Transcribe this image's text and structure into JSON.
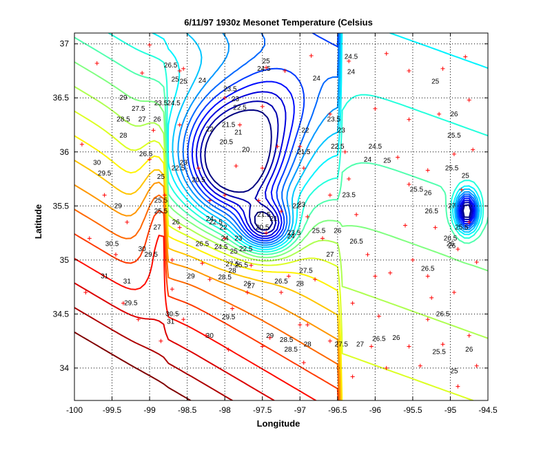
{
  "chart_data": {
    "type": "contour",
    "title": "6/11/97 1930z Mesonet Temperature (Celsius",
    "xlabel": "Longitude",
    "ylabel": "Latitude",
    "xlim": [
      -100,
      -94.5
    ],
    "ylim": [
      33.7,
      37.1
    ],
    "xticks": [
      "-100",
      "-99.5",
      "-99",
      "-98.5",
      "-98",
      "-97.5",
      "-97",
      "-96.5",
      "-96",
      "-95.5",
      "-95",
      "-94.5"
    ],
    "yticks": [
      "34",
      "34.5",
      "35",
      "35.5",
      "36",
      "36.5",
      "37"
    ],
    "grid": true,
    "colormap": "jet",
    "level_range": [
      20,
      31
    ],
    "level_step": 0.5,
    "colors": {
      "station_marker": "#ff0000",
      "grid": "#000000"
    },
    "field_centers": [
      {
        "lon": -97.9,
        "lat": 35.9,
        "value": 20.0
      },
      {
        "lon": -97.45,
        "lat": 35.3,
        "value": 20.8
      },
      {
        "lon": -94.78,
        "lat": 35.45,
        "value": 21.0
      }
    ],
    "contour_labels": [
      {
        "lon": -97.45,
        "lat": 36.84,
        "text": "25"
      },
      {
        "lon": -97.48,
        "lat": 36.77,
        "text": "24.5"
      },
      {
        "lon": -96.32,
        "lat": 36.88,
        "text": "24.5"
      },
      {
        "lon": -96.32,
        "lat": 36.74,
        "text": "24"
      },
      {
        "lon": -98.3,
        "lat": 36.66,
        "text": "24"
      },
      {
        "lon": -97.93,
        "lat": 36.58,
        "text": "23.5"
      },
      {
        "lon": -97.86,
        "lat": 36.49,
        "text": "23"
      },
      {
        "lon": -97.8,
        "lat": 36.41,
        "text": "22.5"
      },
      {
        "lon": -98.2,
        "lat": 36.21,
        "text": "22"
      },
      {
        "lon": -97.95,
        "lat": 36.25,
        "text": "21.5"
      },
      {
        "lon": -97.82,
        "lat": 36.18,
        "text": "21"
      },
      {
        "lon": -97.98,
        "lat": 36.09,
        "text": "20.5"
      },
      {
        "lon": -97.72,
        "lat": 36.02,
        "text": "20"
      },
      {
        "lon": -98.35,
        "lat": 35.74,
        "text": "20.5"
      },
      {
        "lon": -96.93,
        "lat": 36.2,
        "text": "22"
      },
      {
        "lon": -96.55,
        "lat": 36.3,
        "text": "23.5"
      },
      {
        "lon": -96.45,
        "lat": 36.2,
        "text": "23"
      },
      {
        "lon": -96.5,
        "lat": 36.05,
        "text": "22.5"
      },
      {
        "lon": -96.95,
        "lat": 36.0,
        "text": "21.5"
      },
      {
        "lon": -96.78,
        "lat": 36.68,
        "text": "24"
      },
      {
        "lon": -96.1,
        "lat": 35.93,
        "text": "24"
      },
      {
        "lon": -96.0,
        "lat": 36.05,
        "text": "24.5"
      },
      {
        "lon": -95.84,
        "lat": 35.92,
        "text": "25"
      },
      {
        "lon": -96.35,
        "lat": 35.6,
        "text": "23.5"
      },
      {
        "lon": -96.98,
        "lat": 35.51,
        "text": "23"
      },
      {
        "lon": -97.05,
        "lat": 35.5,
        "text": "22"
      },
      {
        "lon": -97.48,
        "lat": 35.42,
        "text": "21.5"
      },
      {
        "lon": -97.35,
        "lat": 35.38,
        "text": "21"
      },
      {
        "lon": -97.5,
        "lat": 35.3,
        "text": "20.5"
      },
      {
        "lon": -97.12,
        "lat": 35.22,
        "text": "24"
      },
      {
        "lon": -97.08,
        "lat": 35.25,
        "text": "23.5"
      },
      {
        "lon": -96.75,
        "lat": 35.27,
        "text": "25.5"
      },
      {
        "lon": -96.5,
        "lat": 35.27,
        "text": "26"
      },
      {
        "lon": -96.25,
        "lat": 35.17,
        "text": "26.5"
      },
      {
        "lon": -96.6,
        "lat": 35.05,
        "text": "27"
      },
      {
        "lon": -96.92,
        "lat": 34.9,
        "text": "27.5"
      },
      {
        "lon": -97.0,
        "lat": 34.78,
        "text": "28"
      },
      {
        "lon": -97.25,
        "lat": 34.8,
        "text": "26.5"
      },
      {
        "lon": -97.7,
        "lat": 34.78,
        "text": "26"
      },
      {
        "lon": -97.65,
        "lat": 34.76,
        "text": "27"
      },
      {
        "lon": -97.72,
        "lat": 35.1,
        "text": "22.5"
      },
      {
        "lon": -97.82,
        "lat": 35.2,
        "text": "23"
      },
      {
        "lon": -98.0,
        "lat": 35.2,
        "text": "24"
      },
      {
        "lon": -98.02,
        "lat": 35.3,
        "text": "22"
      },
      {
        "lon": -98.12,
        "lat": 35.35,
        "text": "22.5"
      },
      {
        "lon": -98.2,
        "lat": 35.38,
        "text": "24"
      },
      {
        "lon": -98.05,
        "lat": 35.12,
        "text": "24.5"
      },
      {
        "lon": -97.88,
        "lat": 35.08,
        "text": "25"
      },
      {
        "lon": -97.78,
        "lat": 34.95,
        "text": "25.5"
      },
      {
        "lon": -98.3,
        "lat": 35.15,
        "text": "26.5"
      },
      {
        "lon": -97.9,
        "lat": 34.96,
        "text": "27.5"
      },
      {
        "lon": -97.9,
        "lat": 34.9,
        "text": "28"
      },
      {
        "lon": -98.0,
        "lat": 34.84,
        "text": "28.5"
      },
      {
        "lon": -98.45,
        "lat": 34.85,
        "text": "29"
      },
      {
        "lon": -98.7,
        "lat": 34.5,
        "text": "30.5"
      },
      {
        "lon": -98.72,
        "lat": 34.43,
        "text": "31"
      },
      {
        "lon": -98.2,
        "lat": 34.3,
        "text": "30"
      },
      {
        "lon": -97.95,
        "lat": 34.47,
        "text": "29.5"
      },
      {
        "lon": -97.4,
        "lat": 34.3,
        "text": "29"
      },
      {
        "lon": -97.18,
        "lat": 34.26,
        "text": "28.5"
      },
      {
        "lon": -97.12,
        "lat": 34.17,
        "text": "28.5"
      },
      {
        "lon": -96.9,
        "lat": 34.22,
        "text": "28"
      },
      {
        "lon": -96.45,
        "lat": 34.22,
        "text": "27.5"
      },
      {
        "lon": -96.2,
        "lat": 34.22,
        "text": "27"
      },
      {
        "lon": -95.95,
        "lat": 34.27,
        "text": "26.5"
      },
      {
        "lon": -95.72,
        "lat": 34.28,
        "text": "26"
      },
      {
        "lon": -95.15,
        "lat": 34.15,
        "text": "25.5"
      },
      {
        "lon": -94.95,
        "lat": 33.97,
        "text": "25"
      },
      {
        "lon": -94.75,
        "lat": 34.17,
        "text": "26"
      },
      {
        "lon": -95.1,
        "lat": 34.5,
        "text": "26.5"
      },
      {
        "lon": -95.3,
        "lat": 34.92,
        "text": "26.5"
      },
      {
        "lon": -95.25,
        "lat": 35.45,
        "text": "26.5"
      },
      {
        "lon": -94.98,
        "lat": 35.5,
        "text": "27"
      },
      {
        "lon": -95.0,
        "lat": 35.15,
        "text": "26"
      },
      {
        "lon": -95.0,
        "lat": 35.2,
        "text": "26.5"
      },
      {
        "lon": -94.98,
        "lat": 35.13,
        "text": "26"
      },
      {
        "lon": -95.45,
        "lat": 35.65,
        "text": "25.5"
      },
      {
        "lon": -95.3,
        "lat": 35.62,
        "text": "26"
      },
      {
        "lon": -95.2,
        "lat": 36.65,
        "text": "25"
      },
      {
        "lon": -94.95,
        "lat": 36.35,
        "text": "26"
      },
      {
        "lon": -94.95,
        "lat": 36.15,
        "text": "25.5"
      },
      {
        "lon": -94.98,
        "lat": 35.85,
        "text": "25.5"
      },
      {
        "lon": -94.8,
        "lat": 35.78,
        "text": "25"
      },
      {
        "lon": -94.85,
        "lat": 35.3,
        "text": "25.5"
      },
      {
        "lon": -99.35,
        "lat": 36.5,
        "text": "29"
      },
      {
        "lon": -99.15,
        "lat": 36.4,
        "text": "27.5"
      },
      {
        "lon": -99.35,
        "lat": 36.3,
        "text": "28.5"
      },
      {
        "lon": -99.1,
        "lat": 36.3,
        "text": "27"
      },
      {
        "lon": -99.35,
        "lat": 36.15,
        "text": "28"
      },
      {
        "lon": -98.9,
        "lat": 36.3,
        "text": "26"
      },
      {
        "lon": -98.85,
        "lat": 36.45,
        "text": "23.5"
      },
      {
        "lon": -98.68,
        "lat": 36.45,
        "text": "24.5"
      },
      {
        "lon": -98.66,
        "lat": 36.67,
        "text": "25"
      },
      {
        "lon": -98.55,
        "lat": 36.65,
        "text": "25"
      },
      {
        "lon": -98.72,
        "lat": 36.8,
        "text": "26.5"
      },
      {
        "lon": -99.05,
        "lat": 35.98,
        "text": "26.5"
      },
      {
        "lon": -99.7,
        "lat": 35.9,
        "text": "30"
      },
      {
        "lon": -99.6,
        "lat": 35.8,
        "text": "29.5"
      },
      {
        "lon": -99.42,
        "lat": 35.5,
        "text": "29"
      },
      {
        "lon": -99.5,
        "lat": 35.15,
        "text": "30.5"
      },
      {
        "lon": -99.1,
        "lat": 35.1,
        "text": "30"
      },
      {
        "lon": -98.98,
        "lat": 35.05,
        "text": "29.5"
      },
      {
        "lon": -99.6,
        "lat": 34.85,
        "text": "31"
      },
      {
        "lon": -99.3,
        "lat": 34.8,
        "text": "31"
      },
      {
        "lon": -99.25,
        "lat": 34.6,
        "text": "29.5"
      },
      {
        "lon": -98.85,
        "lat": 35.77,
        "text": "25"
      },
      {
        "lon": -98.85,
        "lat": 35.55,
        "text": "25.5"
      },
      {
        "lon": -98.85,
        "lat": 35.45,
        "text": "25.5"
      },
      {
        "lon": -98.9,
        "lat": 35.3,
        "text": "27"
      },
      {
        "lon": -98.65,
        "lat": 35.35,
        "text": "26"
      },
      {
        "lon": -98.62,
        "lat": 35.85,
        "text": "22.5"
      },
      {
        "lon": -98.55,
        "lat": 35.9,
        "text": "23"
      }
    ],
    "stations": [
      [
        -99.0,
        36.99
      ],
      [
        -98.55,
        36.77
      ],
      [
        -97.45,
        36.78
      ],
      [
        -97.2,
        36.75
      ],
      [
        -96.85,
        36.89
      ],
      [
        -96.35,
        36.84
      ],
      [
        -95.85,
        36.91
      ],
      [
        -95.55,
        36.75
      ],
      [
        -95.1,
        36.77
      ],
      [
        -94.8,
        36.88
      ],
      [
        -99.7,
        36.82
      ],
      [
        -99.1,
        36.73
      ],
      [
        -98.6,
        36.75
      ],
      [
        -98.0,
        36.5
      ],
      [
        -97.5,
        36.42
      ],
      [
        -96.6,
        36.35
      ],
      [
        -96.0,
        36.4
      ],
      [
        -95.55,
        36.3
      ],
      [
        -95.15,
        36.35
      ],
      [
        -94.75,
        36.48
      ],
      [
        -98.95,
        36.2
      ],
      [
        -98.6,
        36.25
      ],
      [
        -97.8,
        36.25
      ],
      [
        -97.3,
        36.05
      ],
      [
        -97.0,
        36.05
      ],
      [
        -96.4,
        36.0
      ],
      [
        -95.7,
        35.95
      ],
      [
        -95.3,
        35.83
      ],
      [
        -94.95,
        35.98
      ],
      [
        -94.7,
        36.02
      ],
      [
        -99.9,
        36.07
      ],
      [
        -99.0,
        35.93
      ],
      [
        -98.35,
        35.85
      ],
      [
        -97.85,
        35.87
      ],
      [
        -97.5,
        35.85
      ],
      [
        -96.95,
        35.85
      ],
      [
        -96.35,
        35.75
      ],
      [
        -95.55,
        35.7
      ],
      [
        -94.85,
        35.65
      ],
      [
        -99.6,
        35.6
      ],
      [
        -98.8,
        35.6
      ],
      [
        -98.0,
        35.6
      ],
      [
        -97.55,
        35.55
      ],
      [
        -97.25,
        35.45
      ],
      [
        -96.9,
        35.4
      ],
      [
        -96.25,
        35.42
      ],
      [
        -95.6,
        35.32
      ],
      [
        -95.2,
        35.3
      ],
      [
        -94.75,
        35.35
      ],
      [
        -99.8,
        35.2
      ],
      [
        -99.3,
        35.35
      ],
      [
        -98.6,
        35.3
      ],
      [
        -98.0,
        35.2
      ],
      [
        -97.45,
        35.25
      ],
      [
        -96.7,
        35.2
      ],
      [
        -96.1,
        35.05
      ],
      [
        -95.5,
        35.0
      ],
      [
        -94.9,
        35.1
      ],
      [
        -94.65,
        34.98
      ],
      [
        -99.45,
        35.05
      ],
      [
        -98.7,
        35.0
      ],
      [
        -98.3,
        34.97
      ],
      [
        -97.65,
        34.95
      ],
      [
        -97.15,
        34.85
      ],
      [
        -96.8,
        34.82
      ],
      [
        -96.0,
        34.85
      ],
      [
        -95.8,
        34.88
      ],
      [
        -95.3,
        34.85
      ],
      [
        -99.85,
        34.7
      ],
      [
        -99.35,
        34.6
      ],
      [
        -98.7,
        34.73
      ],
      [
        -98.2,
        34.82
      ],
      [
        -97.25,
        34.7
      ],
      [
        -96.3,
        34.6
      ],
      [
        -95.25,
        34.65
      ],
      [
        -94.95,
        34.7
      ],
      [
        -99.15,
        34.45
      ],
      [
        -98.55,
        34.45
      ],
      [
        -97.9,
        34.55
      ],
      [
        -96.9,
        34.4
      ],
      [
        -95.95,
        34.48
      ],
      [
        -95.3,
        34.45
      ],
      [
        -94.75,
        34.3
      ],
      [
        -98.85,
        34.25
      ],
      [
        -98.25,
        34.3
      ],
      [
        -97.4,
        34.28
      ],
      [
        -96.6,
        34.25
      ],
      [
        -96.05,
        34.2
      ],
      [
        -95.55,
        34.2
      ],
      [
        -95.1,
        34.22
      ],
      [
        -97.95,
        34.17
      ],
      [
        -97.5,
        34.2
      ],
      [
        -96.95,
        34.05
      ],
      [
        -96.3,
        33.92
      ],
      [
        -95.85,
        34.0
      ],
      [
        -95.4,
        34.02
      ],
      [
        -94.9,
        33.83
      ],
      [
        -94.65,
        34.02
      ],
      [
        -97.7,
        34.7
      ],
      [
        -98.2,
        35.55
      ],
      [
        -97.0,
        34.4
      ],
      [
        -96.6,
        35.6
      ]
    ]
  }
}
